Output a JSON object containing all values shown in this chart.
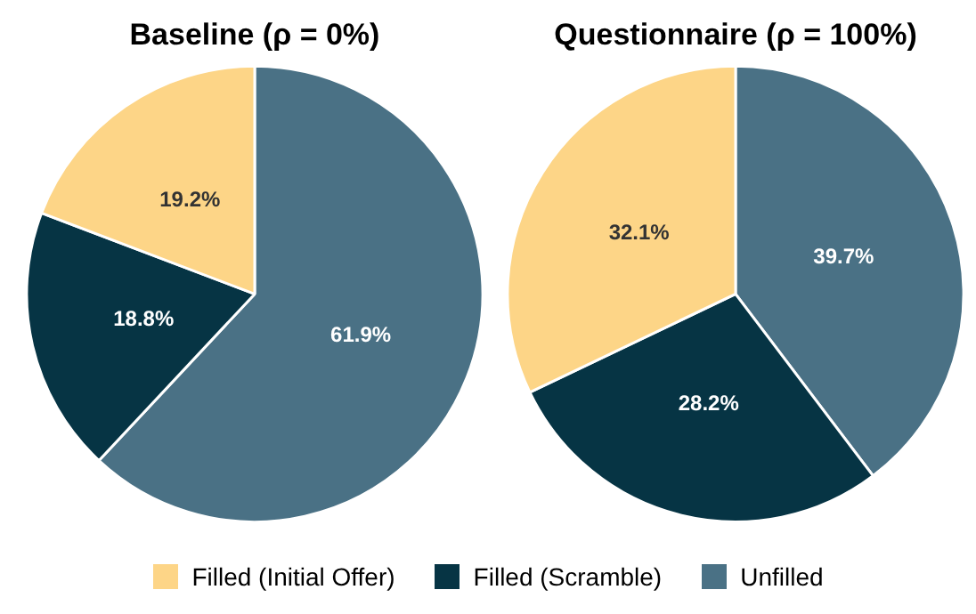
{
  "chart_data": [
    {
      "type": "pie",
      "title": "Baseline (ρ = 0%)",
      "categories": [
        "Filled (Initial Offer)",
        "Filled (Scramble)",
        "Unfilled"
      ],
      "values": [
        19.2,
        18.8,
        61.9
      ],
      "value_labels": [
        "19.2%",
        "18.8%",
        "61.9%"
      ],
      "colors": [
        "#fdd587",
        "#063444",
        "#4a7185"
      ],
      "legend": "bottom"
    },
    {
      "type": "pie",
      "title": "Questionnaire (ρ = 100%)",
      "categories": [
        null,
        null,
        null
      ],
      "values": [
        32.1,
        28.2,
        39.7
      ],
      "value_labels": [
        "32.1%",
        "28.2%",
        "39.7%"
      ],
      "colors": [
        "#fdd587",
        "#063444",
        "#4a7185"
      ]
    }
  ]
}
